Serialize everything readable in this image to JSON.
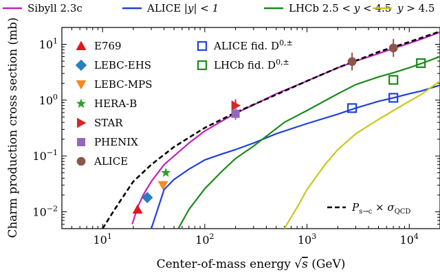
{
  "chart_data": {
    "type": "line",
    "xscale": "log",
    "yscale": "log",
    "xlim": [
      4,
      20000
    ],
    "ylim": [
      0.005,
      20
    ],
    "grid": false,
    "xlabel": {
      "main": "Center-of-mass energy ",
      "sqrt": "s",
      "unit": " (GeV)"
    },
    "ylabel": "Charm production cross section (mb)",
    "xticks": [
      {
        "value": 10,
        "base": "10",
        "exp": "1"
      },
      {
        "value": 100,
        "base": "10",
        "exp": "2"
      },
      {
        "value": 1000,
        "base": "10",
        "exp": "3"
      },
      {
        "value": 10000,
        "base": "10",
        "exp": "4"
      }
    ],
    "yticks": [
      {
        "value": 0.01,
        "base": "10",
        "exp": "−2"
      },
      {
        "value": 0.1,
        "base": "10",
        "exp": "−1"
      },
      {
        "value": 1,
        "base": "10",
        "exp": "0"
      },
      {
        "value": 10,
        "base": "10",
        "exp": "1"
      }
    ],
    "top_legend": [
      {
        "label_parts": [
          {
            "t": "Sibyll 2.3c"
          }
        ],
        "color": "#c020c0"
      },
      {
        "label_parts": [
          {
            "t": "ALICE "
          },
          {
            "t": "|y| < 1",
            "italic": true
          }
        ],
        "color": "#1f3fe0"
      },
      {
        "label_parts": [
          {
            "t": "LHCb 2.5 < "
          },
          {
            "t": "y",
            "italic": true
          },
          {
            "t": " < 4.5"
          }
        ],
        "color": "#1a8a1a"
      },
      {
        "label_parts": [
          {
            "t": "y",
            "italic": true
          },
          {
            "t": " > 4.5"
          }
        ],
        "color": "#c8c81a"
      }
    ],
    "lines": [
      {
        "id": "sibyll",
        "color": "#c020c0",
        "dash": "",
        "x": [
          19.5,
          22,
          25,
          30,
          40,
          50,
          70,
          100,
          150,
          200,
          300,
          500,
          1000,
          2000,
          3000,
          5000,
          7000,
          10000,
          13000,
          20000
        ],
        "y": [
          0.006,
          0.012,
          0.02,
          0.035,
          0.07,
          0.1,
          0.17,
          0.28,
          0.43,
          0.58,
          0.82,
          1.3,
          2.2,
          3.8,
          5.0,
          6.8,
          8.4,
          10.4,
          12.3,
          16.5
        ]
      },
      {
        "id": "alice-mid",
        "color": "#1f3fe0",
        "dash": "",
        "x": [
          30,
          40,
          50,
          70,
          100,
          150,
          200,
          300,
          500,
          1000,
          2000,
          3000,
          5000,
          7000,
          10000,
          13000,
          20000
        ],
        "y": [
          0.005,
          0.025,
          0.038,
          0.058,
          0.085,
          0.11,
          0.13,
          0.17,
          0.25,
          0.38,
          0.56,
          0.72,
          0.95,
          1.1,
          1.3,
          1.45,
          1.85
        ]
      },
      {
        "id": "lhcb",
        "color": "#1a8a1a",
        "dash": "",
        "x": [
          55,
          70,
          100,
          150,
          200,
          300,
          600,
          1000,
          2000,
          3000,
          5000,
          7000,
          10000,
          13000,
          20000
        ],
        "y": [
          0.005,
          0.011,
          0.026,
          0.055,
          0.09,
          0.15,
          0.4,
          0.65,
          1.3,
          1.9,
          2.6,
          3.1,
          3.8,
          4.5,
          6.0
        ]
      },
      {
        "id": "forward",
        "color": "#c8c81a",
        "dash": "",
        "x": [
          600,
          800,
          1000,
          1500,
          2000,
          3000,
          5000,
          7000,
          10000,
          13000,
          20000
        ],
        "y": [
          0.005,
          0.012,
          0.025,
          0.07,
          0.13,
          0.25,
          0.45,
          0.65,
          0.95,
          1.25,
          2.2
        ]
      },
      {
        "id": "pqcd",
        "color": "#000000",
        "dash": "7 4",
        "x": [
          10,
          12,
          15,
          20,
          30,
          50,
          100,
          200,
          500,
          1000,
          2000,
          5000,
          10000,
          20000
        ],
        "y": [
          0.005,
          0.0085,
          0.016,
          0.035,
          0.07,
          0.145,
          0.32,
          0.6,
          1.25,
          2.2,
          3.8,
          7.3,
          11.0,
          17.0
        ]
      }
    ],
    "series_points": [
      {
        "name": "E769",
        "marker": "triangle-up",
        "color": "#e8141c",
        "filled": true,
        "x": 22,
        "y": 0.011,
        "legend_col": 0
      },
      {
        "name": "LEBC-EHS",
        "marker": "diamond",
        "color": "#2a7fc0",
        "filled": true,
        "x": 27.4,
        "y": 0.018,
        "legend_col": 0
      },
      {
        "name": "LEBC-MPS",
        "marker": "triangle-down",
        "color": "#f58a1f",
        "filled": true,
        "x": 39,
        "y": 0.03,
        "legend_col": 0
      },
      {
        "name": "HERA-B",
        "marker": "star",
        "color": "#2ca02c",
        "filled": true,
        "x": 41.6,
        "y": 0.05,
        "legend_col": 0
      },
      {
        "name": "STAR",
        "marker": "triangle-right",
        "color": "#d62728",
        "filled": true,
        "x": 200,
        "y": 0.8,
        "legend_col": 0
      },
      {
        "name": "PHENIX",
        "marker": "square",
        "color": "#9467bd",
        "filled": true,
        "x": 200,
        "y": 0.57,
        "legend_col": 0
      },
      {
        "name": "ALICE",
        "marker": "circle",
        "color": "#8c564b",
        "filled": true,
        "legend_col": 0,
        "points": [
          {
            "x": 2760,
            "y": 4.9
          },
          {
            "x": 7000,
            "y": 8.6
          }
        ]
      }
    ],
    "open_points": [
      {
        "name_parts": [
          {
            "t": "ALICE fid. D"
          },
          {
            "t": "0,±",
            "sup": true
          }
        ],
        "color": "#1f3fe0",
        "points": [
          {
            "x": 2760,
            "y": 0.72
          },
          {
            "x": 7000,
            "y": 1.1
          }
        ]
      },
      {
        "name_parts": [
          {
            "t": "LHCb fid. D"
          },
          {
            "t": "0,±",
            "sup": true
          }
        ],
        "color": "#1a8a1a",
        "points": [
          {
            "x": 7000,
            "y": 2.3
          },
          {
            "x": 13000,
            "y": 4.6
          }
        ]
      }
    ],
    "dashed_legend": {
      "P": "P",
      "P_sub": "s→c",
      "times": " × ",
      "sigma": "σ",
      "sigma_sub": "QCD"
    }
  }
}
